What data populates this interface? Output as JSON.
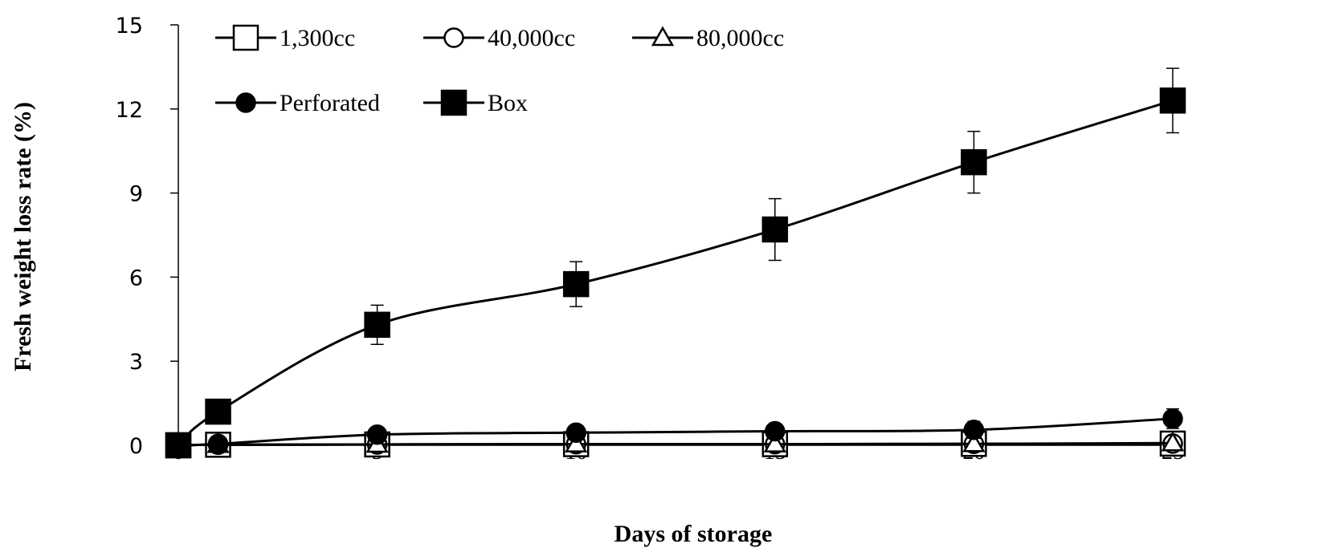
{
  "chart_data": {
    "type": "line",
    "xlabel": "Days of storage",
    "ylabel": "Fresh weight loss rate (%)",
    "x_ticks": [
      "0",
      "5",
      "10",
      "15",
      "20",
      "25"
    ],
    "y_ticks": [
      "0",
      "3",
      "6",
      "9",
      "12",
      "15"
    ],
    "xlim": [
      0,
      25
    ],
    "ylim": [
      0,
      15
    ],
    "grid": false,
    "legend_position": "top-left",
    "series": [
      {
        "name": "1,300cc",
        "marker": "square-open",
        "x": [
          0,
          1,
          5,
          10,
          15,
          20,
          25
        ],
        "values": [
          0,
          0.02,
          0.03,
          0.04,
          0.04,
          0.05,
          0.06
        ],
        "error": [
          0,
          0,
          0,
          0,
          0,
          0,
          0
        ]
      },
      {
        "name": "40,000cc",
        "marker": "circle-open",
        "x": [
          0,
          1,
          5,
          10,
          15,
          20,
          25
        ],
        "values": [
          0,
          0.02,
          0.03,
          0.04,
          0.04,
          0.05,
          0.06
        ],
        "error": [
          0,
          0,
          0,
          0,
          0,
          0,
          0
        ]
      },
      {
        "name": "80,000cc",
        "marker": "triangle-open",
        "x": [
          0,
          1,
          5,
          10,
          15,
          20,
          25
        ],
        "values": [
          0,
          0.02,
          0.03,
          0.04,
          0.04,
          0.05,
          0.08
        ],
        "error": [
          0,
          0,
          0,
          0,
          0,
          0,
          0
        ]
      },
      {
        "name": "Perforated",
        "marker": "circle-filled",
        "x": [
          0,
          1,
          5,
          10,
          15,
          20,
          25
        ],
        "values": [
          0,
          0.05,
          0.38,
          0.45,
          0.5,
          0.55,
          0.95
        ],
        "error": [
          0,
          0,
          0,
          0.1,
          0.12,
          0.3,
          0.35
        ]
      },
      {
        "name": "Box",
        "marker": "square-filled",
        "x": [
          0,
          1,
          5,
          10,
          15,
          20,
          25
        ],
        "values": [
          0,
          1.2,
          4.3,
          5.75,
          7.7,
          10.1,
          12.3
        ],
        "error": [
          0,
          0,
          0.7,
          0.8,
          1.1,
          1.1,
          1.15
        ]
      }
    ]
  }
}
